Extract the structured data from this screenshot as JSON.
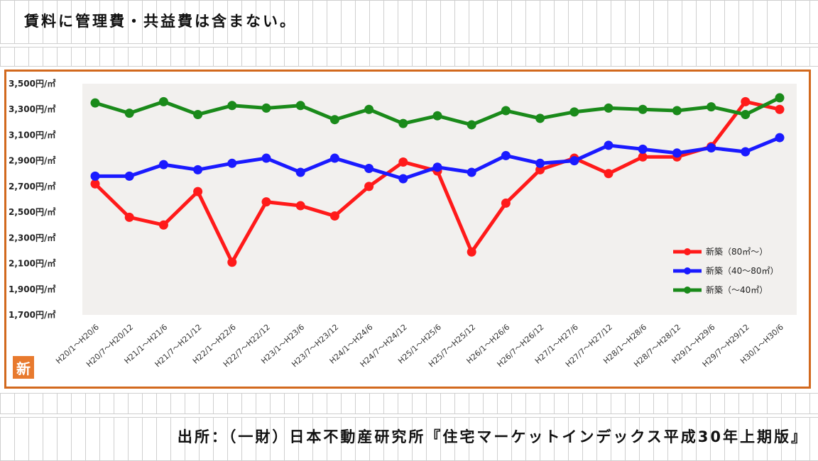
{
  "header": {
    "note": "賃料に管理費・共益費は含まない。"
  },
  "footer": {
    "source": "出所：（一財）日本不動産研究所『住宅マーケットインデックス平成30年上期版』"
  },
  "badge": {
    "label": "新"
  },
  "colors": {
    "frame": "#d2691e",
    "red": "#ff1a1a",
    "blue": "#1a1aff",
    "green": "#1a8a1a"
  },
  "chart_data": {
    "type": "line",
    "title": "",
    "xlabel": "",
    "ylabel": "",
    "ylim": [
      1700,
      3500
    ],
    "yticks": [
      1700,
      1900,
      2100,
      2300,
      2500,
      2700,
      2900,
      3100,
      3300,
      3500
    ],
    "ytick_labels": [
      "1,700円/㎡",
      "1,900円/㎡",
      "2,100円/㎡",
      "2,300円/㎡",
      "2,500円/㎡",
      "2,700円/㎡",
      "2,900円/㎡",
      "3,100円/㎡",
      "3,300円/㎡",
      "3,500円/㎡"
    ],
    "categories": [
      "H20/1～H20/6",
      "H20/7～H20/12",
      "H21/1～H21/6",
      "H21/7～H21/12",
      "H22/1～H22/6",
      "H22/7～H22/12",
      "H23/1～H23/6",
      "H23/7～H23/12",
      "H24/1～H24/6",
      "H24/7～H24/12",
      "H25/1～H25/6",
      "H25/7～H25/12",
      "H26/1～H26/6",
      "H26/7～H26/12",
      "H27/1～H27/6",
      "H27/7～H27/12",
      "H28/1～H28/6",
      "H28/7～H28/12",
      "H29/1～H29/6",
      "H29/7～H29/12",
      "H30/1～H30/6"
    ],
    "legend_position": "right",
    "grid": false,
    "series": [
      {
        "name": "新築（80㎡～）",
        "color": "#ff1a1a",
        "values": [
          2720,
          2460,
          2400,
          2660,
          2110,
          2580,
          2550,
          2470,
          2700,
          2890,
          2820,
          2190,
          2570,
          2830,
          2920,
          2800,
          2930,
          2930,
          3010,
          3360,
          3300
        ]
      },
      {
        "name": "新築（40～80㎡）",
        "color": "#1a1aff",
        "values": [
          2780,
          2780,
          2870,
          2830,
          2880,
          2920,
          2810,
          2920,
          2840,
          2760,
          2850,
          2810,
          2940,
          2880,
          2900,
          3020,
          2990,
          2960,
          3000,
          2970,
          3080
        ]
      },
      {
        "name": "新築（～40㎡）",
        "color": "#1a8a1a",
        "values": [
          3350,
          3270,
          3360,
          3260,
          3330,
          3310,
          3330,
          3220,
          3300,
          3190,
          3250,
          3180,
          3290,
          3230,
          3280,
          3310,
          3300,
          3290,
          3320,
          3260,
          3390
        ]
      }
    ]
  }
}
